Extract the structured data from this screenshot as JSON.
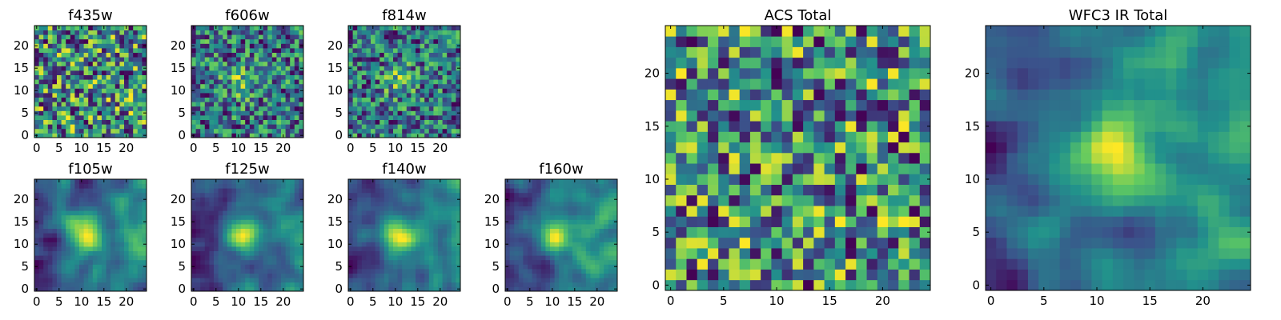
{
  "figure": {
    "background": "#ffffff"
  },
  "colormap": {
    "name": "viridis",
    "stops": [
      "#440154",
      "#3b528b",
      "#21918c",
      "#5ec962",
      "#fde725"
    ]
  },
  "chart_data": [
    {
      "id": "f435w",
      "type": "heatmap",
      "title": "f435w",
      "grid_size": 25,
      "xlim": [
        0,
        24
      ],
      "ylim": [
        0,
        24
      ],
      "xticks": [
        0,
        5,
        10,
        15,
        20
      ],
      "yticks": [
        0,
        5,
        10,
        15,
        20
      ],
      "field": "noise",
      "seed": 11,
      "bright_spot": null
    },
    {
      "id": "f606w",
      "type": "heatmap",
      "title": "f606w",
      "grid_size": 25,
      "xlim": [
        0,
        24
      ],
      "ylim": [
        0,
        24
      ],
      "xticks": [
        0,
        5,
        10,
        15,
        20
      ],
      "yticks": [
        0,
        5,
        10,
        15,
        20
      ],
      "field": "noise",
      "seed": 23,
      "bright_spot": [
        11,
        12
      ]
    },
    {
      "id": "f814w",
      "type": "heatmap",
      "title": "f814w",
      "grid_size": 25,
      "xlim": [
        0,
        24
      ],
      "ylim": [
        0,
        24
      ],
      "xticks": [
        0,
        5,
        10,
        15,
        20
      ],
      "yticks": [
        0,
        5,
        10,
        15,
        20
      ],
      "field": "noise",
      "seed": 37,
      "bright_spot": [
        11,
        12
      ]
    },
    {
      "id": "f105w",
      "type": "heatmap",
      "title": "f105w",
      "grid_size": 25,
      "xlim": [
        0,
        24
      ],
      "ylim": [
        0,
        24
      ],
      "xticks": [
        0,
        5,
        10,
        15,
        20
      ],
      "yticks": [
        0,
        5,
        10,
        15,
        20
      ],
      "field": "smooth",
      "seed": 41,
      "bright_spot": [
        11,
        12
      ]
    },
    {
      "id": "f125w",
      "type": "heatmap",
      "title": "f125w",
      "grid_size": 25,
      "xlim": [
        0,
        24
      ],
      "ylim": [
        0,
        24
      ],
      "xticks": [
        0,
        5,
        10,
        15,
        20
      ],
      "yticks": [
        0,
        5,
        10,
        15,
        20
      ],
      "field": "smooth",
      "seed": 53,
      "bright_spot": [
        11,
        12
      ]
    },
    {
      "id": "f140w",
      "type": "heatmap",
      "title": "f140w",
      "grid_size": 25,
      "xlim": [
        0,
        24
      ],
      "ylim": [
        0,
        24
      ],
      "xticks": [
        0,
        5,
        10,
        15,
        20
      ],
      "yticks": [
        0,
        5,
        10,
        15,
        20
      ],
      "field": "smooth",
      "seed": 67,
      "bright_spot": [
        11,
        12
      ]
    },
    {
      "id": "f160w",
      "type": "heatmap",
      "title": "f160w",
      "grid_size": 25,
      "xlim": [
        0,
        24
      ],
      "ylim": [
        0,
        24
      ],
      "xticks": [
        0,
        5,
        10,
        15,
        20
      ],
      "yticks": [
        0,
        5,
        10,
        15,
        20
      ],
      "field": "smooth",
      "seed": 79,
      "bright_spot": [
        11,
        12
      ]
    },
    {
      "id": "acs-total",
      "type": "heatmap",
      "title": "ACS Total",
      "grid_size": 25,
      "xlim": [
        0,
        24
      ],
      "ylim": [
        0,
        24
      ],
      "xticks": [
        0,
        5,
        10,
        15,
        20
      ],
      "yticks": [
        0,
        5,
        10,
        15,
        20
      ],
      "field": "noise",
      "seed": 97,
      "bright_spot": null
    },
    {
      "id": "wfc3-ir-total",
      "type": "heatmap",
      "title": "WFC3 IR Total",
      "grid_size": 25,
      "xlim": [
        0,
        24
      ],
      "ylim": [
        0,
        24
      ],
      "xticks": [
        0,
        5,
        10,
        15,
        20
      ],
      "yticks": [
        0,
        5,
        10,
        15,
        20
      ],
      "field": "smooth",
      "seed": 131,
      "bright_spot": [
        11,
        12
      ]
    }
  ]
}
